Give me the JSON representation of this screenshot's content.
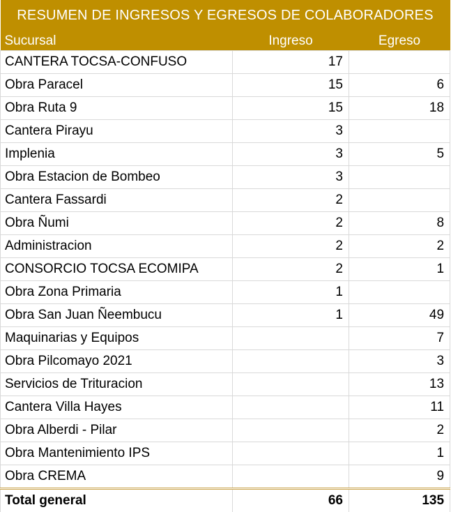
{
  "title": "RESUMEN DE INGRESOS Y EGRESOS DE COLABORADORES",
  "headers": {
    "sucursal": "Sucursal",
    "ingreso": "Ingreso",
    "egreso": "Egreso"
  },
  "rows": [
    {
      "sucursal": "CANTERA TOCSA-CONFUSO",
      "ingreso": "17",
      "egreso": ""
    },
    {
      "sucursal": "Obra Paracel",
      "ingreso": "15",
      "egreso": "6"
    },
    {
      "sucursal": "Obra Ruta 9",
      "ingreso": "15",
      "egreso": "18"
    },
    {
      "sucursal": "Cantera Pirayu",
      "ingreso": "3",
      "egreso": ""
    },
    {
      "sucursal": "Implenia",
      "ingreso": "3",
      "egreso": "5"
    },
    {
      "sucursal": "Obra Estacion de Bombeo",
      "ingreso": "3",
      "egreso": ""
    },
    {
      "sucursal": "Cantera Fassardi",
      "ingreso": "2",
      "egreso": ""
    },
    {
      "sucursal": "Obra Ñumi",
      "ingreso": "2",
      "egreso": "8"
    },
    {
      "sucursal": "Administracion",
      "ingreso": "2",
      "egreso": "2"
    },
    {
      "sucursal": "CONSORCIO TOCSA ECOMIPA",
      "ingreso": "2",
      "egreso": "1"
    },
    {
      "sucursal": "Obra Zona Primaria",
      "ingreso": "1",
      "egreso": ""
    },
    {
      "sucursal": "Obra San Juan Ñeembucu",
      "ingreso": "1",
      "egreso": "49"
    },
    {
      "sucursal": "Maquinarias y Equipos",
      "ingreso": "",
      "egreso": "7"
    },
    {
      "sucursal": "Obra Pilcomayo 2021",
      "ingreso": "",
      "egreso": "3"
    },
    {
      "sucursal": "Servicios de Trituracion",
      "ingreso": "",
      "egreso": "13"
    },
    {
      "sucursal": "Cantera Villa Hayes",
      "ingreso": "",
      "egreso": "11"
    },
    {
      "sucursal": "Obra Alberdi - Pilar",
      "ingreso": "",
      "egreso": "2"
    },
    {
      "sucursal": "Obra Mantenimiento IPS",
      "ingreso": "",
      "egreso": "1"
    },
    {
      "sucursal": "Obra CREMA",
      "ingreso": "",
      "egreso": "9"
    }
  ],
  "total": {
    "label": "Total general",
    "ingreso": "66",
    "egreso": "135"
  },
  "colors": {
    "header_bg": "#bf8f00",
    "header_text": "#ffffff",
    "grid": "#d9d9d9"
  }
}
